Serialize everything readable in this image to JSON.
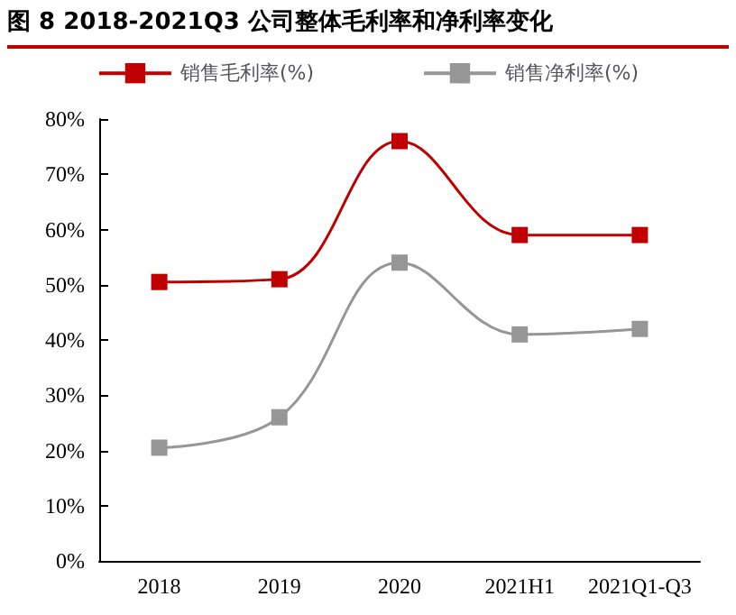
{
  "chart_data": {
    "type": "line",
    "title": "图 8 2018-2021Q3 公司整体毛利率和净利率变化",
    "categories": [
      "2018",
      "2019",
      "2020",
      "2021H1",
      "2021Q1-Q3"
    ],
    "series": [
      {
        "name": "销售毛利率(%)",
        "color": "#c00000",
        "values": [
          50.5,
          51,
          76,
          59,
          59
        ]
      },
      {
        "name": "销售净利率(%)",
        "color": "#969696",
        "values": [
          20.5,
          26,
          54,
          41,
          42
        ]
      }
    ],
    "ylim": [
      0,
      80
    ],
    "yticks": [
      {
        "value": 0,
        "label": "0%"
      },
      {
        "value": 10,
        "label": "10%"
      },
      {
        "value": 20,
        "label": "20%"
      },
      {
        "value": 30,
        "label": "30%"
      },
      {
        "value": 40,
        "label": "40%"
      },
      {
        "value": 50,
        "label": "50%"
      },
      {
        "value": 60,
        "label": "60%"
      },
      {
        "value": 70,
        "label": "70%"
      },
      {
        "value": 80,
        "label": "80%"
      }
    ],
    "grid": false,
    "legend": "top",
    "marker": "square",
    "line_style": "solid"
  }
}
